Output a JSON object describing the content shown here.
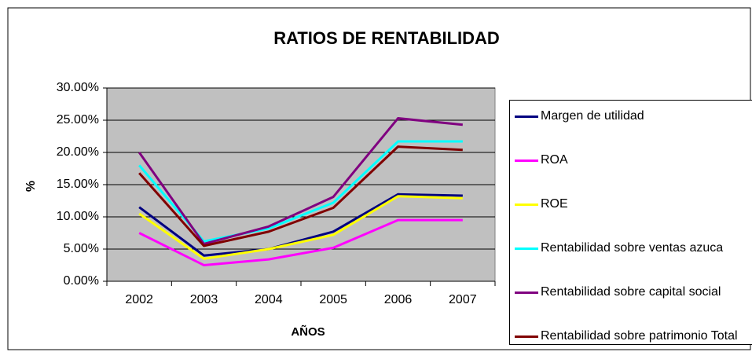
{
  "chart_data": {
    "type": "line",
    "title": "RATIOS DE RENTABILIDAD",
    "x_label": "AÑOS",
    "y_label": "%",
    "categories": [
      "2002",
      "2003",
      "2004",
      "2005",
      "2006",
      "2007"
    ],
    "ylim": [
      0,
      30
    ],
    "yticks": [
      {
        "value": 0,
        "label": "0.00%"
      },
      {
        "value": 5,
        "label": "5.00%"
      },
      {
        "value": 10,
        "label": "10.00%"
      },
      {
        "value": 15,
        "label": "15.00%"
      },
      {
        "value": 20,
        "label": "20.00%"
      },
      {
        "value": 25,
        "label": "25.00%"
      },
      {
        "value": 30,
        "label": "30.00%"
      }
    ],
    "grid": true,
    "legend": "right",
    "series": [
      {
        "name": "Margen de utilidad",
        "color": "#000080",
        "values": [
          11.5,
          4,
          5,
          7.7,
          13.5,
          13.3
        ]
      },
      {
        "name": "ROA",
        "color": "#ff00ff",
        "values": [
          7.5,
          2.5,
          3.4,
          5.2,
          9.5,
          9.5
        ]
      },
      {
        "name": "ROE",
        "color": "#ffff00",
        "values": [
          10.5,
          3.5,
          5,
          7.2,
          13.2,
          12.9
        ]
      },
      {
        "name": "Rentabilidad sobre ventas azuca",
        "color": "#00ffff",
        "values": [
          18,
          6.2,
          8.2,
          12.2,
          21.7,
          21.7
        ]
      },
      {
        "name": "Rentabilidad sobre capital social",
        "color": "#800080",
        "values": [
          20,
          5.8,
          8.5,
          13.1,
          25.3,
          24.3
        ]
      },
      {
        "name": "Rentabilidad sobre patrimonio Total",
        "color": "#800000",
        "values": [
          16.8,
          5.5,
          7.7,
          11.4,
          20.9,
          20.4
        ]
      }
    ]
  }
}
